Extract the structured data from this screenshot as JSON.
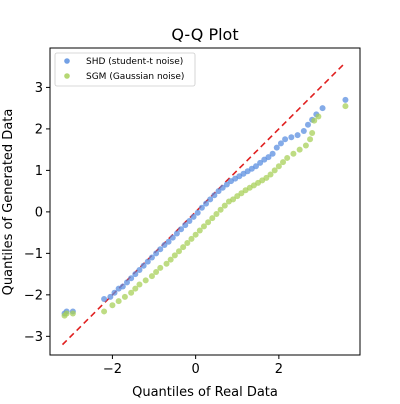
{
  "chart_data": {
    "type": "scatter",
    "title": "Q-Q Plot",
    "xlabel": "Quantiles of Real Data",
    "ylabel": "Quantiles of Generated Data",
    "xlim": [
      -3.5,
      3.95
    ],
    "ylim": [
      -3.45,
      3.95
    ],
    "xticks": [
      -2,
      0,
      2
    ],
    "yticks": [
      -3,
      -2,
      -1,
      0,
      1,
      2,
      3
    ],
    "grid": false,
    "legend_position": "top-left",
    "reference_line": {
      "from": [
        -3.2,
        -3.2
      ],
      "to": [
        3.6,
        3.6
      ],
      "style": "dashed",
      "color": "#e02020"
    },
    "series": [
      {
        "name": "SHD (student-t noise)",
        "color": "#5b8fe0",
        "points": [
          [
            -3.15,
            -2.45
          ],
          [
            -3.1,
            -2.4
          ],
          [
            -2.95,
            -2.4
          ],
          [
            -2.2,
            -2.1
          ],
          [
            -2.05,
            -2.05
          ],
          [
            -1.95,
            -1.95
          ],
          [
            -1.85,
            -1.85
          ],
          [
            -1.75,
            -1.8
          ],
          [
            -1.65,
            -1.7
          ],
          [
            -1.55,
            -1.6
          ],
          [
            -1.45,
            -1.5
          ],
          [
            -1.35,
            -1.4
          ],
          [
            -1.25,
            -1.3
          ],
          [
            -1.15,
            -1.2
          ],
          [
            -1.05,
            -1.1
          ],
          [
            -0.95,
            -1.0
          ],
          [
            -0.85,
            -0.9
          ],
          [
            -0.75,
            -0.8
          ],
          [
            -0.65,
            -0.72
          ],
          [
            -0.55,
            -0.62
          ],
          [
            -0.45,
            -0.52
          ],
          [
            -0.35,
            -0.42
          ],
          [
            -0.25,
            -0.32
          ],
          [
            -0.15,
            -0.22
          ],
          [
            -0.05,
            -0.12
          ],
          [
            0.05,
            -0.02
          ],
          [
            0.15,
            0.1
          ],
          [
            0.25,
            0.2
          ],
          [
            0.35,
            0.3
          ],
          [
            0.45,
            0.4
          ],
          [
            0.55,
            0.5
          ],
          [
            0.65,
            0.58
          ],
          [
            0.75,
            0.66
          ],
          [
            0.85,
            0.74
          ],
          [
            0.95,
            0.8
          ],
          [
            1.05,
            0.86
          ],
          [
            1.15,
            0.92
          ],
          [
            1.25,
            0.98
          ],
          [
            1.35,
            1.04
          ],
          [
            1.45,
            1.1
          ],
          [
            1.55,
            1.18
          ],
          [
            1.65,
            1.26
          ],
          [
            1.75,
            1.32
          ],
          [
            1.85,
            1.4
          ],
          [
            1.95,
            1.55
          ],
          [
            2.05,
            1.65
          ],
          [
            2.15,
            1.75
          ],
          [
            2.3,
            1.8
          ],
          [
            2.45,
            1.85
          ],
          [
            2.6,
            1.95
          ],
          [
            2.7,
            2.1
          ],
          [
            2.8,
            2.22
          ],
          [
            2.9,
            2.35
          ],
          [
            3.05,
            2.5
          ],
          [
            3.6,
            2.7
          ]
        ]
      },
      {
        "name": "SGM (Gaussian noise)",
        "color": "#a8d05a",
        "points": [
          [
            -3.15,
            -2.5
          ],
          [
            -3.1,
            -2.45
          ],
          [
            -2.95,
            -2.45
          ],
          [
            -2.2,
            -2.4
          ],
          [
            -2.0,
            -2.25
          ],
          [
            -1.85,
            -2.15
          ],
          [
            -1.7,
            -2.05
          ],
          [
            -1.55,
            -1.95
          ],
          [
            -1.45,
            -1.85
          ],
          [
            -1.35,
            -1.75
          ],
          [
            -1.2,
            -1.65
          ],
          [
            -1.05,
            -1.55
          ],
          [
            -0.95,
            -1.45
          ],
          [
            -0.85,
            -1.35
          ],
          [
            -0.7,
            -1.25
          ],
          [
            -0.6,
            -1.15
          ],
          [
            -0.5,
            -1.05
          ],
          [
            -0.4,
            -0.95
          ],
          [
            -0.3,
            -0.85
          ],
          [
            -0.2,
            -0.75
          ],
          [
            -0.1,
            -0.65
          ],
          [
            0.0,
            -0.55
          ],
          [
            0.1,
            -0.45
          ],
          [
            0.2,
            -0.35
          ],
          [
            0.3,
            -0.25
          ],
          [
            0.4,
            -0.15
          ],
          [
            0.5,
            -0.05
          ],
          [
            0.6,
            0.05
          ],
          [
            0.7,
            0.15
          ],
          [
            0.8,
            0.25
          ],
          [
            0.9,
            0.3
          ],
          [
            1.0,
            0.38
          ],
          [
            1.1,
            0.45
          ],
          [
            1.2,
            0.52
          ],
          [
            1.3,
            0.58
          ],
          [
            1.4,
            0.64
          ],
          [
            1.5,
            0.7
          ],
          [
            1.6,
            0.76
          ],
          [
            1.7,
            0.82
          ],
          [
            1.8,
            0.9
          ],
          [
            1.9,
            1.0
          ],
          [
            2.0,
            1.1
          ],
          [
            2.1,
            1.2
          ],
          [
            2.2,
            1.3
          ],
          [
            2.35,
            1.4
          ],
          [
            2.5,
            1.5
          ],
          [
            2.65,
            1.6
          ],
          [
            2.75,
            1.75
          ],
          [
            2.8,
            1.9
          ],
          [
            2.85,
            2.2
          ],
          [
            2.95,
            2.3
          ],
          [
            3.6,
            2.55
          ]
        ]
      }
    ]
  }
}
